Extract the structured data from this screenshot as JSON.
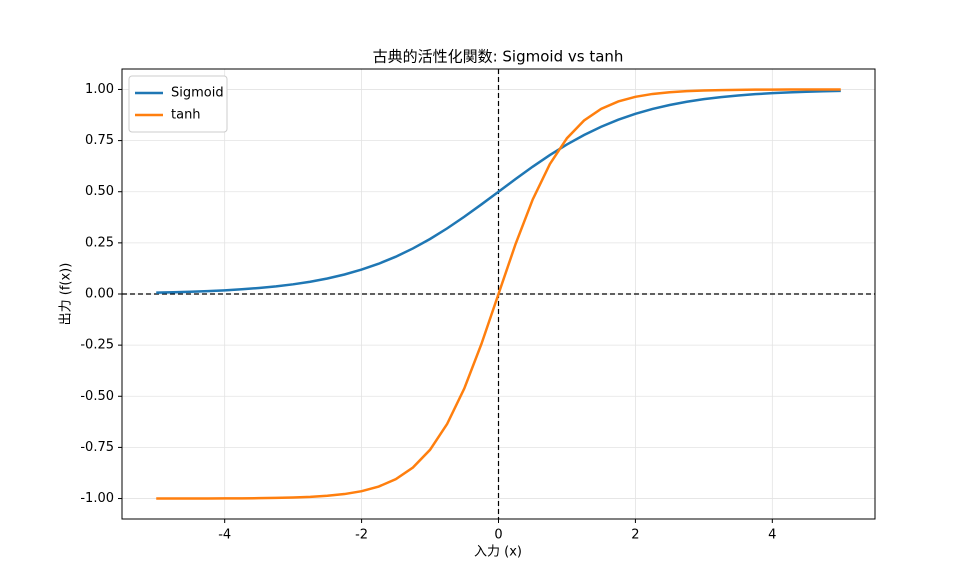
{
  "chart_data": {
    "type": "line",
    "title": "古典的活性化関数: Sigmoid vs tanh",
    "x_label": "入力 (x)",
    "y_label": "出力 (f(x))",
    "x": [
      -5,
      -4.75,
      -4.5,
      -4.25,
      -4,
      -3.75,
      -3.5,
      -3.25,
      -3,
      -2.75,
      -2.5,
      -2.25,
      -2,
      -1.75,
      -1.5,
      -1.25,
      -1,
      -0.75,
      -0.5,
      -0.25,
      0,
      0.25,
      0.5,
      0.75,
      1,
      1.25,
      1.5,
      1.75,
      2,
      2.25,
      2.5,
      2.75,
      3,
      3.25,
      3.5,
      3.75,
      4,
      4.25,
      4.5,
      4.75,
      5
    ],
    "series": [
      {
        "name": "Sigmoid",
        "color": "#1f77b4",
        "values": [
          0.0067,
          0.0086,
          0.011,
          0.0141,
          0.018,
          0.023,
          0.0293,
          0.0373,
          0.0474,
          0.0601,
          0.0759,
          0.0953,
          0.1192,
          0.148,
          0.1824,
          0.2227,
          0.2689,
          0.3208,
          0.3775,
          0.4378,
          0.5,
          0.5622,
          0.6225,
          0.6792,
          0.7311,
          0.7773,
          0.8176,
          0.852,
          0.8808,
          0.9047,
          0.9241,
          0.9399,
          0.9526,
          0.9627,
          0.9707,
          0.977,
          0.982,
          0.9859,
          0.989,
          0.9914,
          0.9933
        ]
      },
      {
        "name": "tanh",
        "color": "#ff7f0e",
        "values": [
          -0.9999,
          -0.9999,
          -0.9998,
          -0.9996,
          -0.9993,
          -0.9989,
          -0.9982,
          -0.997,
          -0.9951,
          -0.9918,
          -0.9866,
          -0.978,
          -0.964,
          -0.9414,
          -0.9051,
          -0.8483,
          -0.7616,
          -0.6351,
          -0.4621,
          -0.2449,
          0,
          0.2449,
          0.4621,
          0.6351,
          0.7616,
          0.8483,
          0.9051,
          0.9414,
          0.964,
          0.978,
          0.9866,
          0.9918,
          0.9951,
          0.997,
          0.9982,
          0.9989,
          0.9993,
          0.9996,
          0.9998,
          0.9999,
          0.9999
        ]
      }
    ],
    "xlim": [
      -5.5,
      5.5
    ],
    "ylim": [
      -1.1,
      1.1
    ],
    "xticks": [
      -4,
      -2,
      0,
      2,
      4
    ],
    "yticks": [
      {
        "value": -1,
        "label": "-1.00"
      },
      {
        "value": -0.75,
        "label": "-0.75"
      },
      {
        "value": -0.5,
        "label": "-0.50"
      },
      {
        "value": -0.25,
        "label": "-0.25"
      },
      {
        "value": 0,
        "label": "0.00"
      },
      {
        "value": 0.25,
        "label": "0.25"
      },
      {
        "value": 0.5,
        "label": "0.50"
      },
      {
        "value": 0.75,
        "label": "0.75"
      },
      {
        "value": 1,
        "label": "1.00"
      }
    ],
    "grid": true,
    "legend": "upper left",
    "axhline": 0,
    "axvline": 0
  }
}
